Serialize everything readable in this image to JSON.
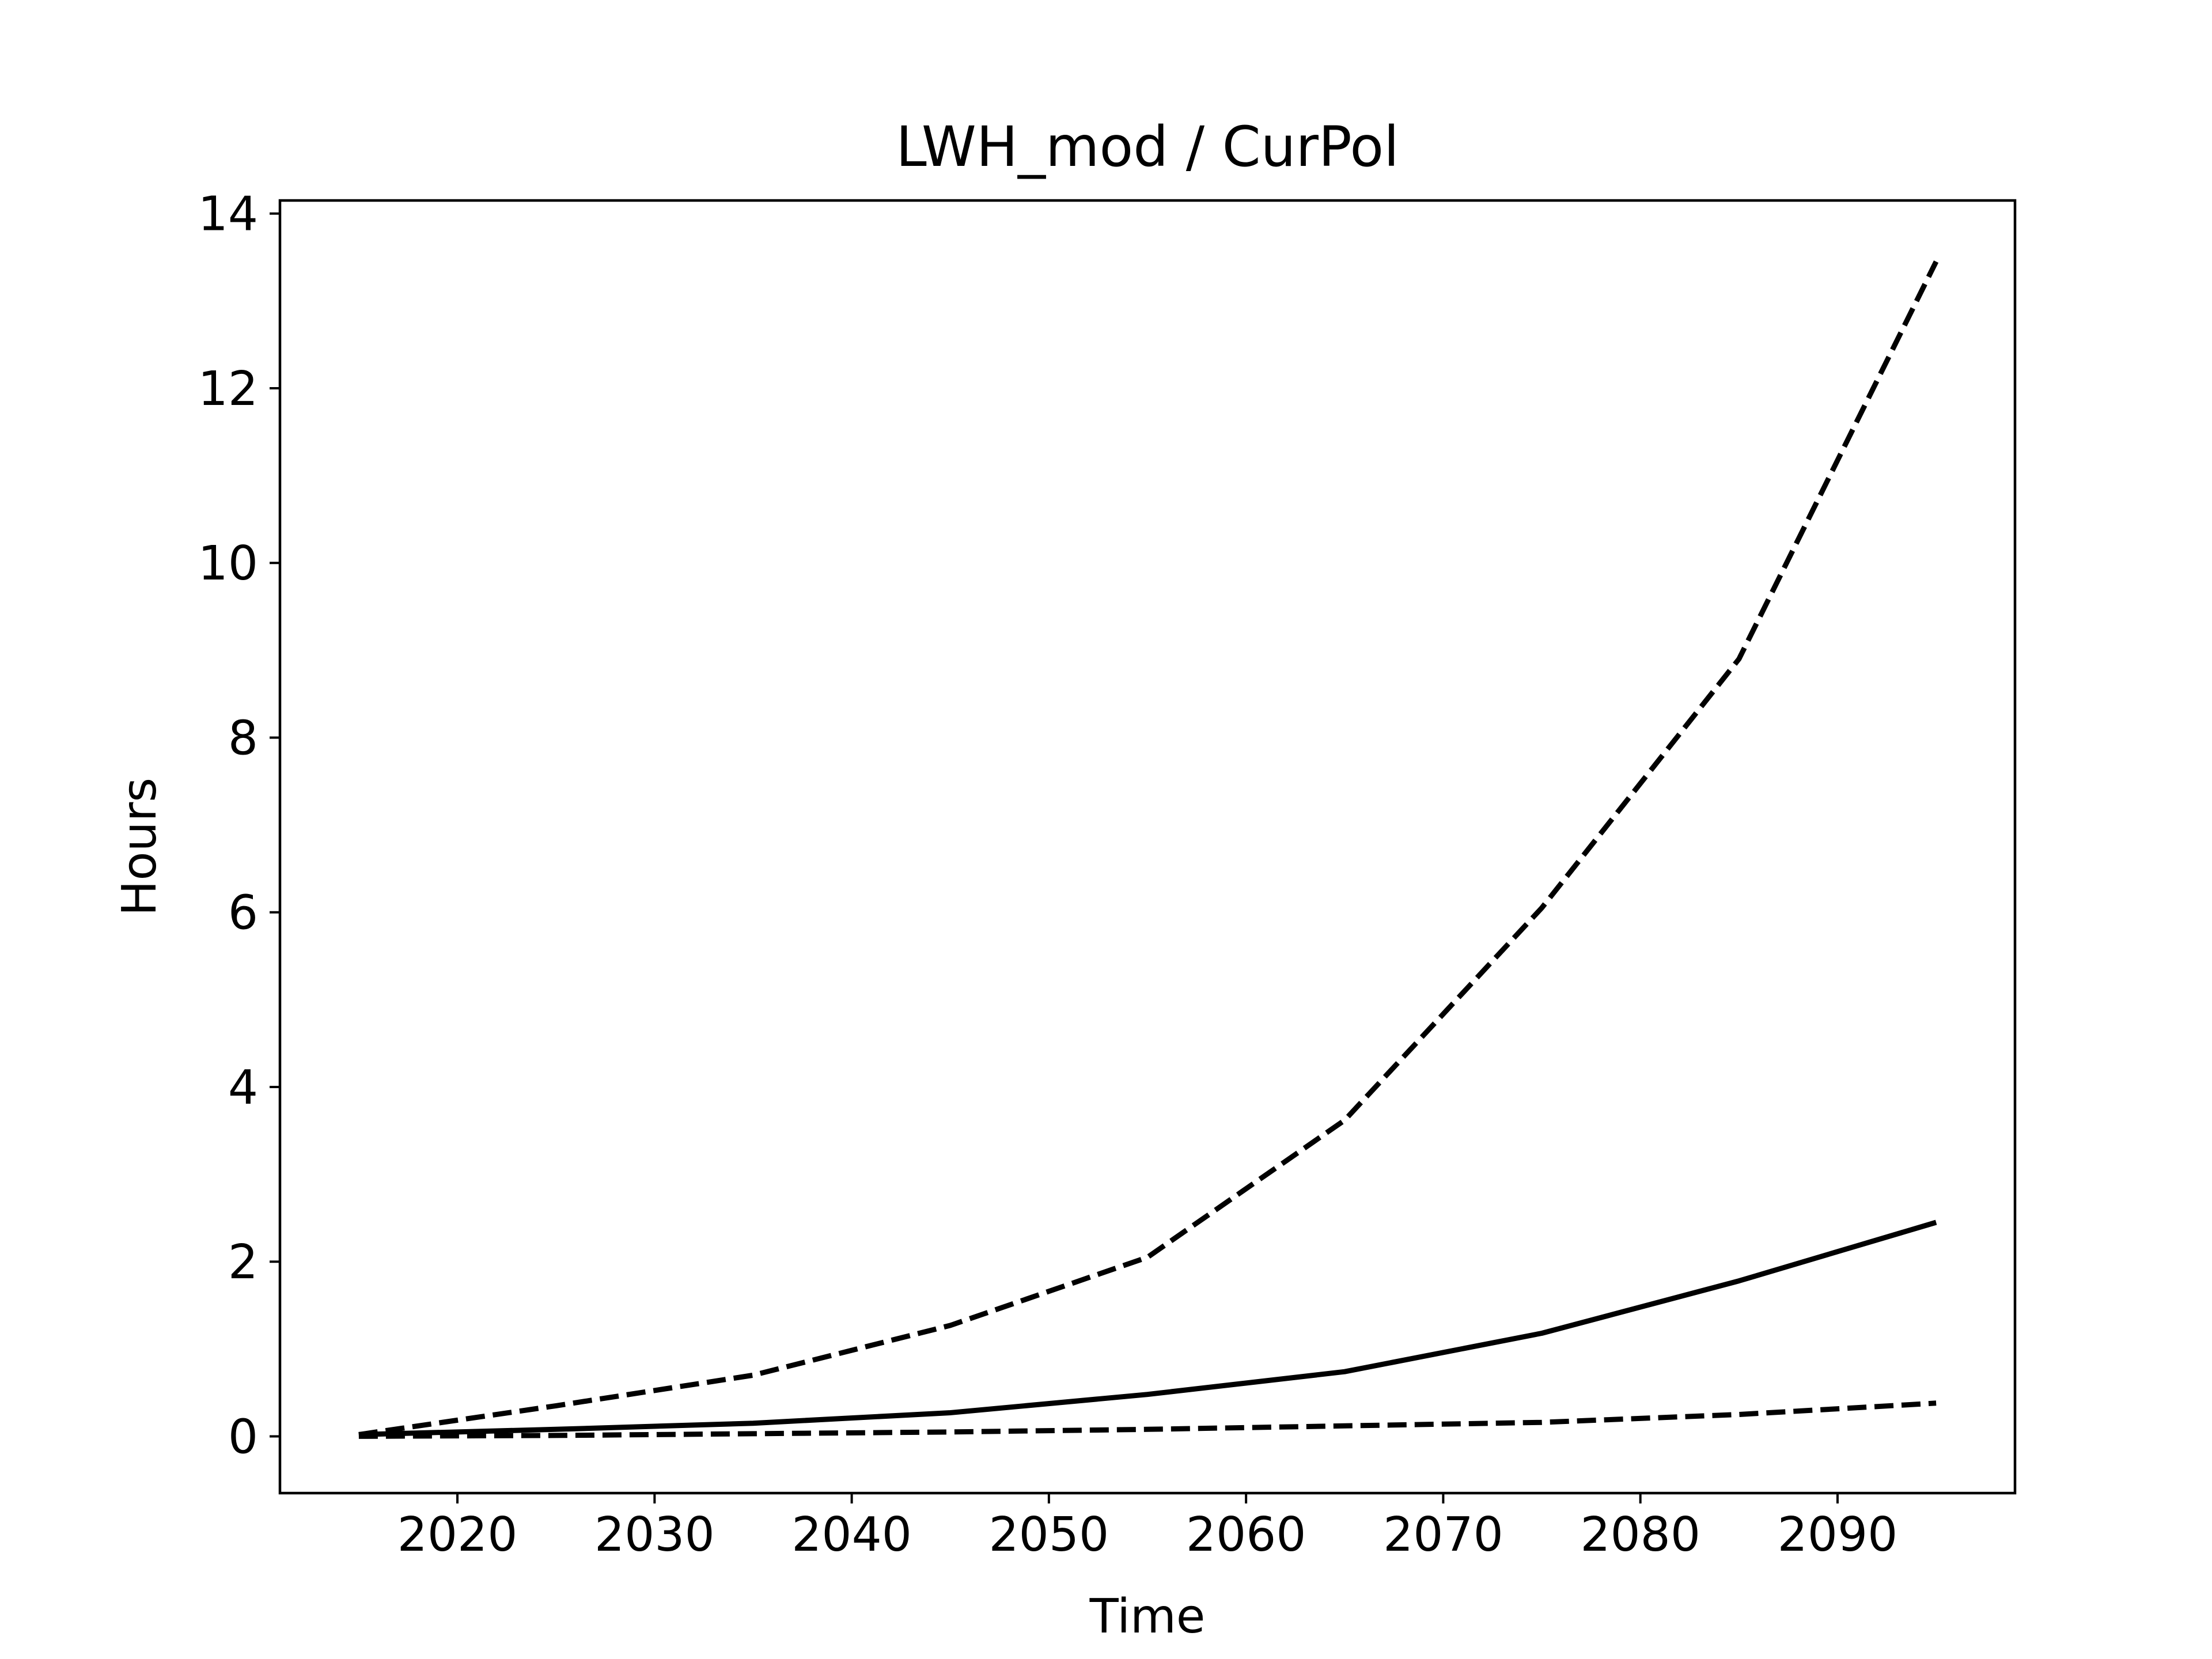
{
  "chart_data": {
    "type": "line",
    "title": "LWH_mod / CurPol",
    "xlabel": "Time",
    "ylabel": "Hours",
    "xlim": [
      2011,
      2099
    ],
    "ylim": [
      -0.65,
      14.15
    ],
    "grid": false,
    "x_ticks": [
      2020,
      2030,
      2040,
      2050,
      2060,
      2070,
      2080,
      2090
    ],
    "y_ticks": [
      0,
      2,
      4,
      6,
      8,
      10,
      12,
      14
    ],
    "x": [
      2015,
      2025,
      2035,
      2045,
      2055,
      2065,
      2075,
      2085,
      2095
    ],
    "series": [
      {
        "style": "dashed",
        "color": "#000000",
        "values": [
          0.02,
          0.35,
          0.7,
          1.27,
          2.05,
          3.62,
          6.05,
          8.9,
          13.45
        ]
      },
      {
        "style": "solid",
        "color": "#000000",
        "values": [
          0.02,
          0.08,
          0.15,
          0.27,
          0.48,
          0.74,
          1.18,
          1.78,
          2.45
        ]
      },
      {
        "style": "dashed",
        "color": "#000000",
        "values": [
          0.0,
          0.01,
          0.03,
          0.05,
          0.08,
          0.12,
          0.16,
          0.25,
          0.38
        ]
      }
    ]
  }
}
